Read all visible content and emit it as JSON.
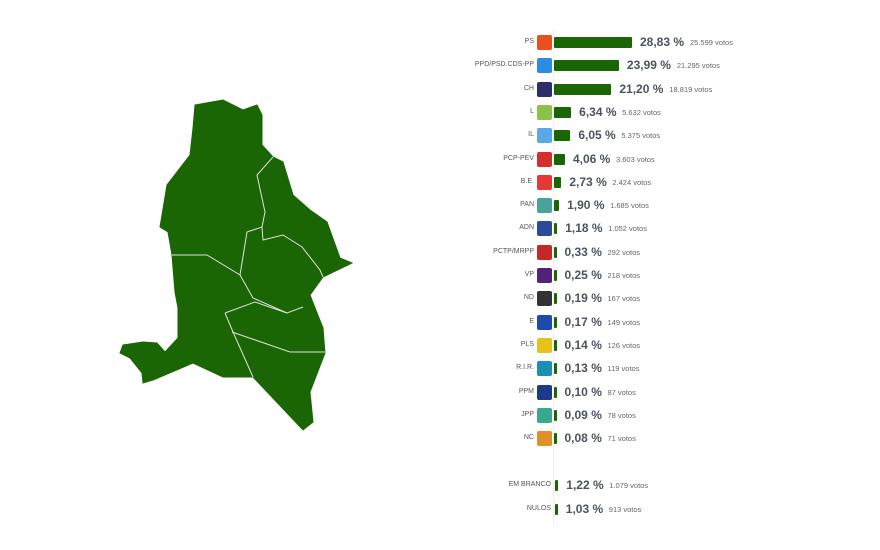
{
  "chart_data": {
    "type": "bar",
    "orientation": "horizontal",
    "rows": [
      {
        "party": "PS",
        "pct": "28,83 %",
        "value": 28.83,
        "votes": "25.599 votos",
        "logo": "ps-logo-icon",
        "color": "#e8501e"
      },
      {
        "party": "PPD/PSD.CDS-PP",
        "pct": "23,99 %",
        "value": 23.99,
        "votes": "21.295 votos",
        "logo": "ad-logo-icon",
        "color": "#2a8de0"
      },
      {
        "party": "CH",
        "pct": "21,20 %",
        "value": 21.2,
        "votes": "18.819 votos",
        "logo": "chega-logo-icon",
        "color": "#2b2f6b"
      },
      {
        "party": "L",
        "pct": "6,34 %",
        "value": 6.34,
        "votes": "5.632 votos",
        "logo": "livre-logo-icon",
        "color": "#8bc34a"
      },
      {
        "party": "IL",
        "pct": "6,05 %",
        "value": 6.05,
        "votes": "5.375 votos",
        "logo": "il-logo-icon",
        "color": "#5aa9e6"
      },
      {
        "party": "PCP-PEV",
        "pct": "4,06 %",
        "value": 4.06,
        "votes": "3.603 votos",
        "logo": "cdu-logo-icon",
        "color": "#d32f2f"
      },
      {
        "party": "B.E.",
        "pct": "2,73 %",
        "value": 2.73,
        "votes": "2.424 votos",
        "logo": "be-star-icon",
        "color": "#e53935"
      },
      {
        "party": "PAN",
        "pct": "1,90 %",
        "value": 1.9,
        "votes": "1.685 votos",
        "logo": "pan-logo-icon",
        "color": "#4aa39a"
      },
      {
        "party": "ADN",
        "pct": "1,18 %",
        "value": 1.18,
        "votes": "1.052 votos",
        "logo": "adn-logo-icon",
        "color": "#2b4a9a"
      },
      {
        "party": "PCTP/MRPP",
        "pct": "0,33 %",
        "value": 0.33,
        "votes": "292 votos",
        "logo": "mrpp-logo-icon",
        "color": "#c62828"
      },
      {
        "party": "VP",
        "pct": "0,25 %",
        "value": 0.25,
        "votes": "218 votos",
        "logo": "volt-logo-icon",
        "color": "#502379"
      },
      {
        "party": "ND",
        "pct": "0,19 %",
        "value": 0.19,
        "votes": "167 votos",
        "logo": "nd-logo-icon",
        "color": "#333333"
      },
      {
        "party": "E",
        "pct": "0,17 %",
        "value": 0.17,
        "votes": "149 votos",
        "logo": "ergue-te-logo-icon",
        "color": "#1e4ab0"
      },
      {
        "party": "PLS",
        "pct": "0,14 %",
        "value": 0.14,
        "votes": "126 votos",
        "logo": "pls-logo-icon",
        "color": "#e6c21a"
      },
      {
        "party": "R.I.R.",
        "pct": "0,13 %",
        "value": 0.13,
        "votes": "119 votos",
        "logo": "rir-logo-icon",
        "color": "#1a8fb0"
      },
      {
        "party": "PPM",
        "pct": "0,10 %",
        "value": 0.1,
        "votes": "87 votos",
        "logo": "ppm-logo-icon",
        "color": "#1d3a8a"
      },
      {
        "party": "JPP",
        "pct": "0,09 %",
        "value": 0.09,
        "votes": "78 votos",
        "logo": "jpp-logo-icon",
        "color": "#3aa88a"
      },
      {
        "party": "NC",
        "pct": "0,08 %",
        "value": 0.08,
        "votes": "71 votos",
        "logo": "nc-logo-icon",
        "color": "#e0902a"
      }
    ],
    "extra": [
      {
        "party": "EM BRANCO",
        "pct": "1,22 %",
        "value": 1.22,
        "votes": "1.079 votos"
      },
      {
        "party": "NULOS",
        "pct": "1,03 %",
        "value": 1.03,
        "votes": "913 votos"
      }
    ],
    "bar_color": "#1a6604"
  },
  "map": {
    "fill": "#1a6604",
    "border": "#e8e8e8"
  }
}
